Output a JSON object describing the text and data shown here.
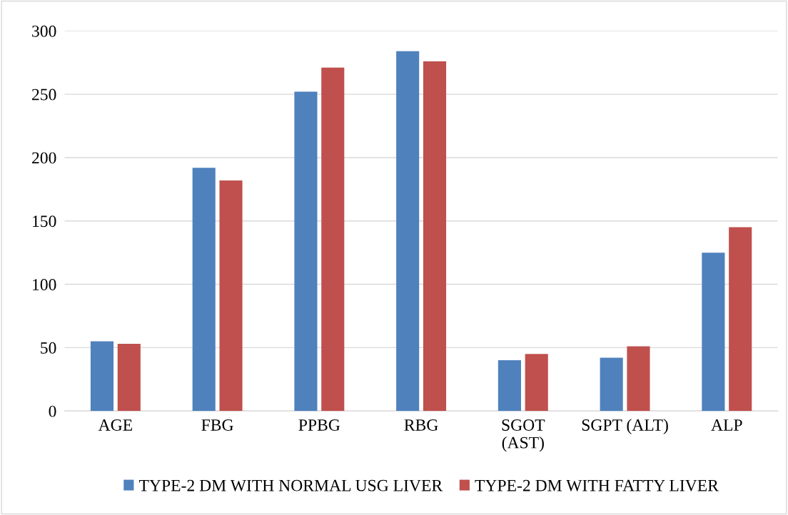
{
  "chart_data": {
    "type": "bar",
    "categories": [
      "AGE",
      "FBG",
      "PPBG",
      "RBG",
      "SGOT\n(AST)",
      "SGPT (ALT)",
      "ALP"
    ],
    "series": [
      {
        "name": "TYPE-2 DM WITH NORMAL USG LIVER",
        "color": "#4f81bd",
        "values": [
          55,
          192,
          252,
          284,
          40,
          42,
          125
        ]
      },
      {
        "name": "TYPE-2 DM WITH FATTY LIVER",
        "color": "#c0504d",
        "values": [
          53,
          182,
          271,
          276,
          45,
          51,
          145
        ]
      }
    ],
    "ylim": [
      0,
      300
    ],
    "yticks": [
      0,
      50,
      100,
      150,
      200,
      250,
      300
    ],
    "grid": "y",
    "legend": "bottom"
  }
}
